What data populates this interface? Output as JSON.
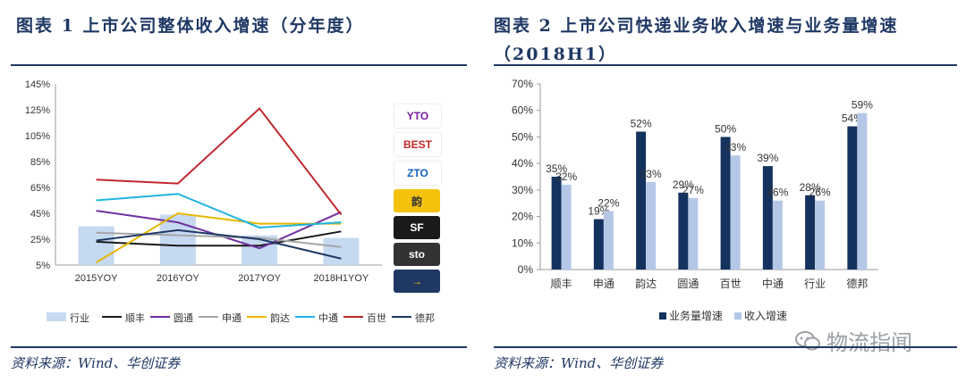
{
  "left": {
    "title": "图表 1  上市公司整体收入增速（分年度）",
    "source": "资料来源：Wind、华创证券"
  },
  "right": {
    "title_line1": "图表 2  上市公司快递业务收入增速与业务量增速",
    "title_line2": "（2018H1）",
    "source": "资料来源：Wind、华创证券"
  },
  "watermark": "物流指闻",
  "logos": [
    {
      "name": "yto-logo",
      "text": "YTO",
      "color": "#7b1fa2",
      "bg": "#ffffff"
    },
    {
      "name": "best-logo",
      "text": "BEST",
      "color": "#c62828",
      "bg": "#ffffff"
    },
    {
      "name": "zto-logo",
      "text": "ZTO",
      "color": "#1565c0",
      "bg": "#ffffff"
    },
    {
      "name": "yunda-logo",
      "text": "韵",
      "color": "#333333",
      "bg": "#f4c20d"
    },
    {
      "name": "sf-logo",
      "text": "SF",
      "color": "#ffffff",
      "bg": "#1a1a1a"
    },
    {
      "name": "sto-logo",
      "text": "sto",
      "color": "#ffffff",
      "bg": "#333333"
    },
    {
      "name": "deppon-logo",
      "text": "→",
      "color": "#f4c20d",
      "bg": "#1f3864"
    }
  ],
  "chart_data": [
    {
      "type": "line",
      "categories": [
        "2015YOY",
        "2016YOY",
        "2017YOY",
        "2018H1YOY"
      ],
      "yticks": [
        "145%",
        "125%",
        "105%",
        "85%",
        "65%",
        "45%",
        "25%",
        "5%"
      ],
      "ylim": [
        5,
        145
      ],
      "bar_series": {
        "name": "行业",
        "values": [
          35,
          44,
          28,
          26
        ],
        "color": "#c5d9f1"
      },
      "series": [
        {
          "name": "顺丰",
          "values": [
            23,
            20,
            20,
            31
          ],
          "color": "#1a1a1a"
        },
        {
          "name": "圆通",
          "values": [
            47,
            38,
            18,
            46
          ],
          "color": "#7030a0"
        },
        {
          "name": "申通",
          "values": [
            30,
            28,
            26,
            19
          ],
          "color": "#a6a6a6"
        },
        {
          "name": "韵达",
          "values": [
            7,
            45,
            37,
            37
          ],
          "color": "#e6b700"
        },
        {
          "name": "中通",
          "values": [
            55,
            60,
            34,
            38
          ],
          "color": "#1fb4e0"
        },
        {
          "name": "百世",
          "values": [
            71,
            68,
            126,
            44
          ],
          "color": "#c0282d"
        },
        {
          "name": "德邦",
          "values": [
            24,
            32,
            25,
            10
          ],
          "color": "#1f3864"
        }
      ]
    },
    {
      "type": "bar",
      "categories": [
        "顺丰",
        "申通",
        "韵达",
        "圆通",
        "百世",
        "中通",
        "行业",
        "德邦"
      ],
      "yticks": [
        "70%",
        "60%",
        "50%",
        "40%",
        "30%",
        "20%",
        "10%",
        "0%"
      ],
      "ylim": [
        0,
        70
      ],
      "series": [
        {
          "name": "业务量增速",
          "values": [
            35,
            19,
            52,
            29,
            50,
            39,
            28,
            54
          ],
          "labels": [
            "35%",
            "19%",
            "52%",
            "29%",
            "50%",
            "39%",
            "28%",
            "54%"
          ],
          "color": "#14325e"
        },
        {
          "name": "收入增速",
          "values": [
            32,
            22,
            33,
            27,
            43,
            26,
            26,
            59
          ],
          "labels": [
            "32%",
            "22%",
            "33%",
            "27%",
            "43%",
            "26%",
            "26%",
            "59%"
          ],
          "color": "#b4c7e7"
        }
      ]
    }
  ]
}
